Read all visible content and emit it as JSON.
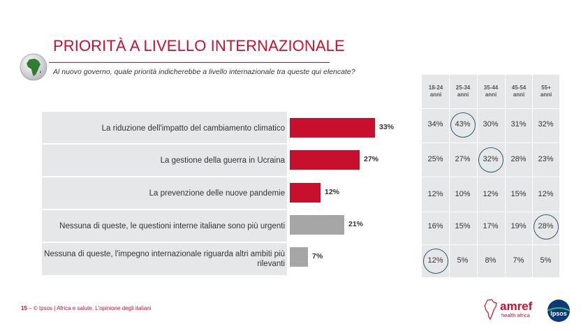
{
  "title": "PRIORITÀ A LIVELLO INTERNAZIONALE",
  "question": "Al nuovo governo, quale priorità indicherebbe a livello internazionale tra queste qui elencate?",
  "colors": {
    "accent": "#c8102e",
    "gray_bar": "#a6a6a6",
    "circle": "#2b5d6e",
    "panel": "#e6e7e8"
  },
  "chart_data": {
    "type": "bar",
    "orientation": "horizontal",
    "categories": [
      "La riduzione dell'impatto del cambiamento climatico",
      "La gestione della guerra in Ucraina",
      "La prevenzione delle nuove pandemie",
      "Nessuna di queste, le questioni interne italiane sono più urgenti",
      "Nessuna di queste, l'impegno internazionale riguarda altri ambiti più rilevanti"
    ],
    "values": [
      33,
      27,
      12,
      21,
      7
    ],
    "value_labels": [
      "33%",
      "27%",
      "12%",
      "21%",
      "7%"
    ],
    "bar_colors": [
      "#c8102e",
      "#c8102e",
      "#c8102e",
      "#a6a6a6",
      "#a6a6a6"
    ],
    "xlim": [
      0,
      33
    ]
  },
  "age_table": {
    "headers": [
      [
        "18-24",
        "anni"
      ],
      [
        "25-34",
        "anni"
      ],
      [
        "35-44",
        "anni"
      ],
      [
        "45-54",
        "anni"
      ],
      [
        "55+",
        "anni"
      ]
    ],
    "rows": [
      [
        "34%",
        "43%",
        "30%",
        "31%",
        "32%"
      ],
      [
        "25%",
        "27%",
        "32%",
        "28%",
        "23%"
      ],
      [
        "12%",
        "10%",
        "12%",
        "15%",
        "12%"
      ],
      [
        "16%",
        "15%",
        "17%",
        "19%",
        "28%"
      ],
      [
        "12%",
        "5%",
        "8%",
        "7%",
        "5%"
      ]
    ],
    "highlighted": [
      [
        0,
        1
      ],
      [
        1,
        2
      ],
      [
        3,
        4
      ],
      [
        4,
        0
      ]
    ]
  },
  "footer": {
    "page_number": "15",
    "separator": " ‒ ",
    "text": "© Ipsos | Africa e salute. L'opinione degli italiani"
  },
  "logos": {
    "amref_name": "amref",
    "amref_sub": "health africa",
    "ipsos_name": "Ipsos"
  },
  "icons": {
    "globe": "africa-globe-icon"
  }
}
